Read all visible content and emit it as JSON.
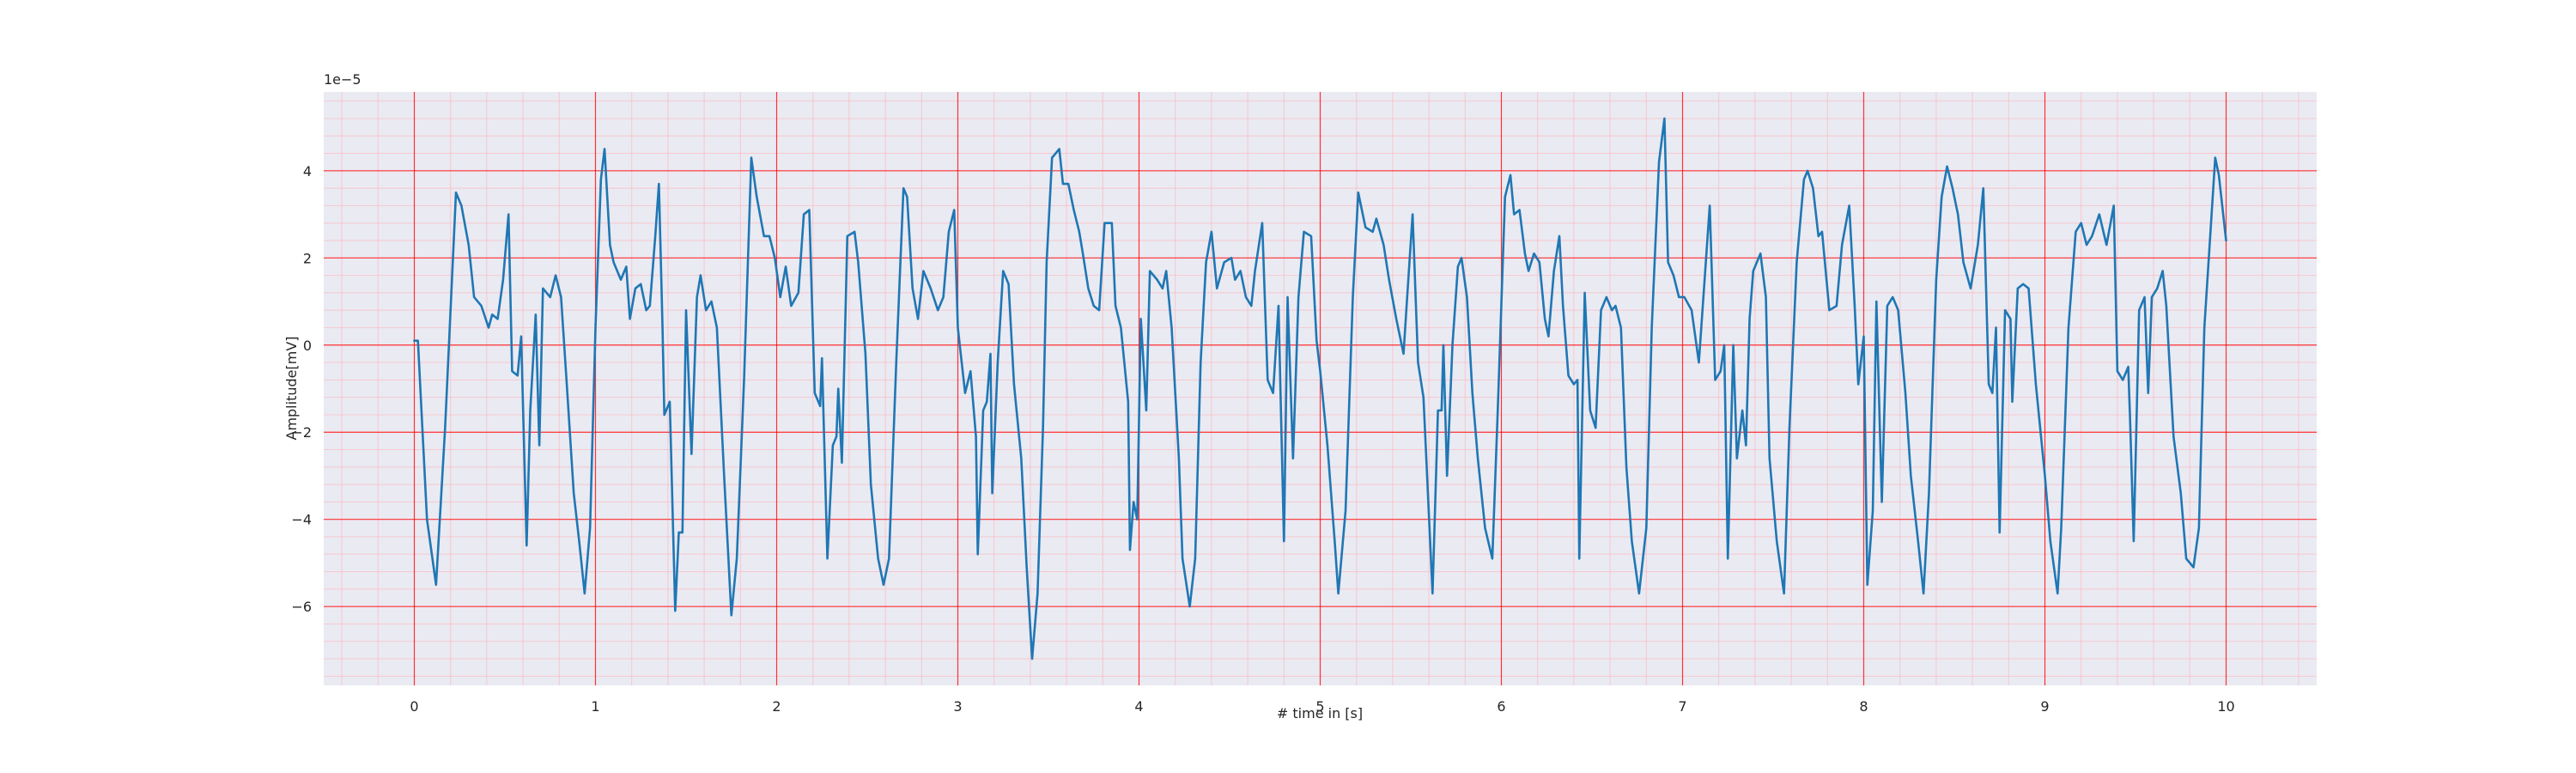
{
  "chart_data": {
    "type": "line",
    "xlabel": "# time in [s]",
    "ylabel": "Amplitude[mV]",
    "offset_text": "1e−5",
    "color": "#1f77b4",
    "grid": true,
    "minor_grid": true,
    "grid_color": "#ff0000",
    "minor_grid_color": "#ffb0b8",
    "xlim": [
      -0.5,
      10.5
    ],
    "ylim": [
      -7.81,
      5.81
    ],
    "xticks": [
      0,
      1,
      2,
      3,
      4,
      5,
      6,
      7,
      8,
      9,
      10
    ],
    "yticks": [
      {
        "value": -6,
        "label": "−6"
      },
      {
        "value": -4,
        "label": "−4"
      },
      {
        "value": -2,
        "label": "−2"
      },
      0,
      2,
      4
    ],
    "x": [
      0,
      0.02,
      0.07,
      0.12,
      0.17,
      0.23,
      0.26,
      0.3,
      0.33,
      0.37,
      0.41,
      0.43,
      0.46,
      0.49,
      0.52,
      0.54,
      0.57,
      0.59,
      0.62,
      0.64,
      0.67,
      0.69,
      0.71,
      0.75,
      0.78,
      0.81,
      0.84,
      0.88,
      0.91,
      0.94,
      0.97,
      1.0,
      1.03,
      1.05,
      1.08,
      1.1,
      1.14,
      1.17,
      1.19,
      1.22,
      1.25,
      1.28,
      1.3,
      1.33,
      1.35,
      1.37,
      1.38,
      1.41,
      1.44,
      1.46,
      1.48,
      1.5,
      1.53,
      1.56,
      1.58,
      1.61,
      1.64,
      1.67,
      1.71,
      1.75,
      1.78,
      1.82,
      1.86,
      1.89,
      1.93,
      1.96,
      1.99,
      2.02,
      2.05,
      2.08,
      2.12,
      2.15,
      2.18,
      2.21,
      2.24,
      2.25,
      2.28,
      2.31,
      2.33,
      2.34,
      2.36,
      2.39,
      2.43,
      2.45,
      2.49,
      2.52,
      2.56,
      2.59,
      2.62,
      2.66,
      2.7,
      2.72,
      2.75,
      2.78,
      2.81,
      2.85,
      2.89,
      2.92,
      2.95,
      2.98,
      3.0,
      3.04,
      3.07,
      3.1,
      3.11,
      3.14,
      3.16,
      3.18,
      3.19,
      3.22,
      3.25,
      3.28,
      3.31,
      3.35,
      3.38,
      3.41,
      3.44,
      3.47,
      3.49,
      3.52,
      3.56,
      3.58,
      3.61,
      3.64,
      3.67,
      3.69,
      3.72,
      3.75,
      3.78,
      3.81,
      3.85,
      3.87,
      3.9,
      3.94,
      3.95,
      3.97,
      3.99,
      4.01,
      4.04,
      4.06,
      4.1,
      4.13,
      4.15,
      4.18,
      4.22,
      4.24,
      4.28,
      4.31,
      4.34,
      4.37,
      4.4,
      4.43,
      4.47,
      4.51,
      4.53,
      4.56,
      4.59,
      4.62,
      4.64,
      4.68,
      4.71,
      4.74,
      4.77,
      4.8,
      4.82,
      4.85,
      4.88,
      4.91,
      4.95,
      4.98,
      5.0,
      5.04,
      5.08,
      5.1,
      5.14,
      5.18,
      5.21,
      5.25,
      5.29,
      5.31,
      5.35,
      5.38,
      5.42,
      5.46,
      5.48,
      5.51,
      5.54,
      5.57,
      5.59,
      5.62,
      5.65,
      5.67,
      5.68,
      5.7,
      5.73,
      5.76,
      5.78,
      5.81,
      5.84,
      5.87,
      5.91,
      5.95,
      5.98,
      6.02,
      6.05,
      6.07,
      6.1,
      6.13,
      6.15,
      6.18,
      6.21,
      6.24,
      6.26,
      6.29,
      6.32,
      6.34,
      6.37,
      6.4,
      6.42,
      6.43,
      6.46,
      6.49,
      6.52,
      6.55,
      6.58,
      6.61,
      6.63,
      6.66,
      6.69,
      6.72,
      6.76,
      6.8,
      6.83,
      6.87,
      6.9,
      6.92,
      6.95,
      6.98,
      7.01,
      7.05,
      7.09,
      7.11,
      7.15,
      7.18,
      7.21,
      7.23,
      7.25,
      7.28,
      7.3,
      7.33,
      7.35,
      7.37,
      7.39,
      7.43,
      7.46,
      7.48,
      7.52,
      7.56,
      7.59,
      7.63,
      7.67,
      7.69,
      7.72,
      7.75,
      7.77,
      7.81,
      7.85,
      7.88,
      7.92,
      7.95,
      7.97,
      8.0,
      8.02,
      8.05,
      8.07,
      8.1,
      8.13,
      8.16,
      8.19,
      8.23,
      8.26,
      8.3,
      8.33,
      8.36,
      8.4,
      8.43,
      8.46,
      8.49,
      8.52,
      8.55,
      8.59,
      8.63,
      8.66,
      8.69,
      8.71,
      8.73,
      8.75,
      8.78,
      8.81,
      8.82,
      8.85,
      8.88,
      8.91,
      8.95,
      9.0,
      9.03,
      9.07,
      9.09,
      9.13,
      9.17,
      9.2,
      9.23,
      9.26,
      9.3,
      9.34,
      9.38,
      9.4,
      9.43,
      9.46,
      9.47,
      9.49,
      9.52,
      9.55,
      9.57,
      9.59,
      9.62,
      9.65,
      9.67,
      9.71,
      9.75,
      9.78,
      9.82,
      9.85,
      9.88,
      9.92,
      9.94,
      9.96,
      10.0
    ],
    "values": [
      0.1,
      0.1,
      -4.0,
      -5.5,
      -1.9,
      3.5,
      3.2,
      2.3,
      1.1,
      0.9,
      0.4,
      0.7,
      0.6,
      1.5,
      3.0,
      -0.6,
      -0.7,
      0.2,
      -4.6,
      -1.5,
      0.7,
      -2.3,
      1.3,
      1.1,
      1.6,
      1.1,
      -0.8,
      -3.4,
      -4.5,
      -5.7,
      -4.2,
      0.4,
      3.8,
      4.5,
      2.3,
      1.9,
      1.5,
      1.8,
      0.6,
      1.3,
      1.4,
      0.8,
      0.9,
      2.5,
      3.7,
      0.4,
      -1.6,
      -1.3,
      -6.1,
      -4.3,
      -4.3,
      0.8,
      -2.5,
      1.1,
      1.6,
      0.8,
      1.0,
      0.4,
      -3.0,
      -6.2,
      -4.9,
      -0.8,
      4.3,
      3.4,
      2.5,
      2.5,
      2.0,
      1.1,
      1.8,
      0.9,
      1.2,
      3.0,
      3.1,
      -1.1,
      -1.4,
      -0.3,
      -4.9,
      -2.3,
      -2.1,
      -1.0,
      -2.7,
      2.5,
      2.6,
      1.9,
      -0.2,
      -3.2,
      -4.9,
      -5.5,
      -4.9,
      -0.4,
      3.6,
      3.4,
      1.3,
      0.6,
      1.7,
      1.3,
      0.8,
      1.1,
      2.6,
      3.1,
      0.4,
      -1.1,
      -0.6,
      -2.1,
      -4.8,
      -1.5,
      -1.3,
      -0.2,
      -3.4,
      -0.4,
      1.7,
      1.4,
      -0.9,
      -2.6,
      -5.1,
      -7.2,
      -5.7,
      -1.9,
      1.9,
      4.3,
      4.5,
      3.7,
      3.7,
      3.1,
      2.6,
      2.1,
      1.3,
      0.9,
      0.8,
      2.8,
      2.8,
      0.9,
      0.4,
      -1.3,
      -4.7,
      -3.6,
      -4.0,
      0.6,
      -1.5,
      1.7,
      1.5,
      1.3,
      1.7,
      0.4,
      -2.6,
      -4.9,
      -6.0,
      -4.9,
      -0.4,
      1.9,
      2.6,
      1.3,
      1.9,
      2.0,
      1.5,
      1.7,
      1.1,
      0.9,
      1.7,
      2.8,
      -0.8,
      -1.1,
      0.9,
      -4.5,
      1.1,
      -2.6,
      1.1,
      2.6,
      2.5,
      0.1,
      -0.6,
      -2.3,
      -4.5,
      -5.7,
      -3.8,
      1.1,
      3.5,
      2.7,
      2.6,
      2.9,
      2.3,
      1.5,
      0.6,
      -0.2,
      1.1,
      3.0,
      -0.4,
      -1.2,
      -3.0,
      -5.7,
      -1.5,
      -1.5,
      0,
      -3.0,
      0,
      1.8,
      2.0,
      1.1,
      -1.1,
      -2.6,
      -4.2,
      -4.9,
      -1.5,
      3.4,
      3.9,
      3.0,
      3.1,
      2.1,
      1.7,
      2.1,
      1.9,
      0.6,
      0.2,
      1.7,
      2.5,
      0.9,
      -0.7,
      -0.9,
      -0.8,
      -4.9,
      1.2,
      -1.5,
      -1.9,
      0.8,
      1.1,
      0.8,
      0.9,
      0.4,
      -2.8,
      -4.5,
      -5.7,
      -4.2,
      0.4,
      4.2,
      5.2,
      1.9,
      1.6,
      1.1,
      1.1,
      0.8,
      -0.4,
      0.8,
      3.2,
      -0.8,
      -0.6,
      0,
      -4.9,
      0,
      -2.6,
      -1.5,
      -2.3,
      0.6,
      1.7,
      2.1,
      1.1,
      -2.6,
      -4.5,
      -5.7,
      -1.9,
      1.9,
      3.8,
      4.0,
      3.6,
      2.5,
      2.6,
      0.8,
      0.9,
      2.3,
      3.2,
      0.9,
      -0.9,
      0.2,
      -5.5,
      -3.8,
      1.0,
      -3.6,
      0.9,
      1.1,
      0.8,
      -1.1,
      -3.0,
      -4.5,
      -5.7,
      -3.4,
      1.5,
      3.4,
      4.1,
      3.6,
      3.0,
      1.9,
      1.3,
      2.3,
      3.6,
      -0.9,
      -1.1,
      0.4,
      -4.3,
      0.8,
      0.6,
      -1.3,
      1.3,
      1.4,
      1.3,
      -0.9,
      -3.0,
      -4.5,
      -5.7,
      -4.2,
      0.4,
      2.6,
      2.8,
      2.3,
      2.5,
      3.0,
      2.3,
      3.2,
      -0.6,
      -0.8,
      -0.5,
      -1.7,
      -4.5,
      0.8,
      1.1,
      -1.1,
      1.1,
      1.3,
      1.7,
      0.9,
      -2.1,
      -3.4,
      -4.9,
      -5.1,
      -4.2,
      0.4,
      3.0,
      4.3,
      3.9,
      2.4
    ]
  }
}
